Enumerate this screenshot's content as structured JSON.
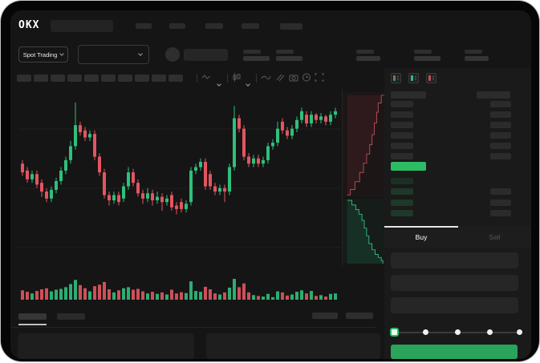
{
  "brand": {
    "logo": "OKX"
  },
  "subheader": {
    "market_type_label": "Spot Trading"
  },
  "trade_panel": {
    "buy_tab_label": "Buy",
    "sell_tab_label": "Sell"
  },
  "colors": {
    "up": "#2fbf7c",
    "down": "#e35561",
    "last_price_row": "#2cbd64",
    "buy_button": "#2aa35b",
    "active_tab_underline": "#e6e6e6",
    "screen_bg": "#151515"
  },
  "icons": {
    "toolbar": [
      "wave-icon",
      "chevron-down-icon",
      "candlestick-icon",
      "chevron-down-icon",
      "line-chart-icon",
      "compare-icon",
      "camera-icon",
      "clock-icon",
      "fullscreen-icon"
    ],
    "orderbook_views": [
      "book-split-view-icon",
      "book-buy-view-icon",
      "book-sell-view-icon"
    ]
  },
  "orderbook": {
    "asks": [
      {
        "has_right": true
      },
      {
        "has_right": true
      },
      {
        "has_right": true
      },
      {
        "has_right": true
      },
      {
        "has_right": true
      },
      {
        "has_right": true
      }
    ],
    "bids": [
      {
        "has_right": false
      },
      {
        "has_right": true
      },
      {
        "has_right": true
      },
      {
        "has_right": true
      }
    ]
  },
  "chart_data": {
    "type": "candlestick",
    "title": "",
    "ylim": [
      0,
      100
    ],
    "grid": true,
    "candles_ochl_v": [
      [
        60,
        55,
        53,
        62,
        45
      ],
      [
        56,
        51,
        49,
        58,
        38
      ],
      [
        51,
        54,
        49,
        56,
        30
      ],
      [
        54,
        48,
        46,
        56,
        42
      ],
      [
        49,
        44,
        41,
        51,
        50
      ],
      [
        44,
        40,
        38,
        46,
        55
      ],
      [
        40,
        45,
        38,
        47,
        40
      ],
      [
        45,
        50,
        43,
        52,
        48
      ],
      [
        50,
        56,
        48,
        58,
        52
      ],
      [
        56,
        62,
        54,
        64,
        60
      ],
      [
        62,
        70,
        60,
        73,
        75
      ],
      [
        70,
        82,
        68,
        95,
        95
      ],
      [
        82,
        78,
        76,
        84,
        70
      ],
      [
        79,
        75,
        73,
        81,
        55
      ],
      [
        75,
        77,
        73,
        79,
        40
      ],
      [
        77,
        64,
        62,
        79,
        65
      ],
      [
        64,
        55,
        53,
        66,
        72
      ],
      [
        55,
        42,
        40,
        57,
        85
      ],
      [
        42,
        39,
        36,
        44,
        50
      ],
      [
        39,
        42,
        37,
        44,
        35
      ],
      [
        42,
        38,
        36,
        44,
        45
      ],
      [
        40,
        47,
        38,
        49,
        55
      ],
      [
        47,
        55,
        45,
        58,
        60
      ],
      [
        55,
        49,
        47,
        57,
        48
      ],
      [
        49,
        43,
        41,
        51,
        52
      ],
      [
        43,
        40,
        37,
        45,
        40
      ],
      [
        40,
        43,
        38,
        46,
        30
      ],
      [
        43,
        39,
        36,
        45,
        38
      ],
      [
        39,
        41,
        37,
        44,
        28
      ],
      [
        41,
        38,
        33,
        43,
        35
      ],
      [
        38,
        40,
        36,
        42,
        25
      ],
      [
        42,
        35,
        33,
        44,
        48
      ],
      [
        36,
        34,
        31,
        38,
        30
      ],
      [
        38,
        34,
        32,
        40,
        36
      ],
      [
        34,
        37,
        32,
        39,
        32
      ],
      [
        38,
        56,
        36,
        58,
        88
      ],
      [
        56,
        58,
        54,
        60,
        42
      ],
      [
        58,
        61,
        56,
        63,
        38
      ],
      [
        61,
        47,
        45,
        63,
        62
      ],
      [
        54,
        47,
        45,
        56,
        50
      ],
      [
        47,
        44,
        42,
        49,
        30
      ],
      [
        44,
        46,
        42,
        48,
        25
      ],
      [
        46,
        44,
        38,
        48,
        35
      ],
      [
        44,
        58,
        42,
        60,
        58
      ],
      [
        58,
        86,
        56,
        93,
        100
      ],
      [
        86,
        80,
        78,
        88,
        60
      ],
      [
        80,
        64,
        62,
        82,
        78
      ],
      [
        64,
        60,
        58,
        66,
        35
      ],
      [
        60,
        63,
        58,
        65,
        22
      ],
      [
        63,
        60,
        58,
        65,
        18
      ],
      [
        60,
        62,
        58,
        64,
        15
      ],
      [
        62,
        70,
        60,
        72,
        28
      ],
      [
        70,
        72,
        68,
        74,
        12
      ],
      [
        72,
        80,
        70,
        84,
        40
      ],
      [
        84,
        79,
        77,
        86,
        35
      ],
      [
        79,
        76,
        74,
        81,
        20
      ],
      [
        76,
        80,
        74,
        82,
        25
      ],
      [
        80,
        85,
        78,
        87,
        38
      ],
      [
        85,
        90,
        83,
        92,
        45
      ],
      [
        88,
        83,
        81,
        90,
        30
      ],
      [
        83,
        88,
        81,
        90,
        42
      ],
      [
        88,
        85,
        83,
        89,
        18
      ],
      [
        85,
        87,
        83,
        89,
        22
      ],
      [
        87,
        84,
        82,
        88,
        15
      ],
      [
        84,
        88,
        82,
        90,
        28
      ],
      [
        88,
        90,
        86,
        92,
        30
      ]
    ],
    "depth": {
      "asks": [
        [
          56,
          4
        ],
        [
          50,
          4
        ],
        [
          50,
          14
        ],
        [
          46,
          14
        ],
        [
          46,
          26
        ],
        [
          44,
          26
        ],
        [
          44,
          40
        ],
        [
          41,
          40
        ],
        [
          41,
          55
        ],
        [
          38,
          55
        ],
        [
          38,
          68
        ],
        [
          35,
          68
        ],
        [
          35,
          80
        ],
        [
          31,
          80
        ],
        [
          31,
          92
        ],
        [
          27,
          92
        ],
        [
          27,
          104
        ],
        [
          22,
          104
        ],
        [
          22,
          116
        ],
        [
          16,
          116
        ],
        [
          16,
          126
        ],
        [
          10,
          126
        ],
        [
          10,
          133
        ],
        [
          6,
          133
        ]
      ],
      "bids": [
        [
          6,
          140
        ],
        [
          12,
          140
        ],
        [
          12,
          146
        ],
        [
          17,
          146
        ],
        [
          17,
          152
        ],
        [
          21,
          152
        ],
        [
          21,
          158
        ],
        [
          25,
          158
        ],
        [
          25,
          166
        ],
        [
          28,
          166
        ],
        [
          28,
          176
        ],
        [
          31,
          176
        ],
        [
          31,
          186
        ],
        [
          34,
          186
        ],
        [
          34,
          196
        ],
        [
          38,
          196
        ],
        [
          38,
          204
        ],
        [
          42,
          204
        ],
        [
          42,
          210
        ],
        [
          46,
          210
        ],
        [
          46,
          214
        ],
        [
          50,
          214
        ],
        [
          50,
          218
        ],
        [
          52,
          218
        ],
        [
          52,
          222
        ]
      ]
    }
  }
}
